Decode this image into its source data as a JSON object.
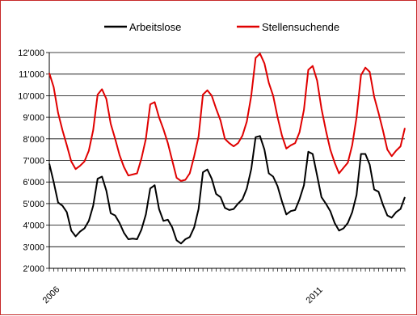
{
  "chart_data": {
    "type": "line",
    "title": "",
    "xlabel": "",
    "ylabel": "",
    "ylim": [
      2000,
      12000
    ],
    "yticks": [
      2000,
      3000,
      4000,
      5000,
      6000,
      7000,
      8000,
      9000,
      10000,
      11000,
      12000
    ],
    "ytick_labels": [
      "2'000",
      "3'000",
      "4'000",
      "5'000",
      "6'000",
      "7'000",
      "8'000",
      "9'000",
      "10'000",
      "11'000",
      "12'000"
    ],
    "x_tick_labels": [
      "2006",
      "2011"
    ],
    "grid": "horizontal",
    "legend_position": "top",
    "series": [
      {
        "name": "Arbeitslose",
        "color": "#000000",
        "values": [
          6850,
          6000,
          5050,
          4900,
          4600,
          3750,
          3480,
          3700,
          3850,
          4200,
          4900,
          6150,
          6250,
          5600,
          4550,
          4450,
          4100,
          3650,
          3350,
          3380,
          3350,
          3800,
          4500,
          5700,
          5850,
          4750,
          4200,
          4250,
          3900,
          3300,
          3150,
          3350,
          3450,
          3900,
          4750,
          6450,
          6580,
          6150,
          5450,
          5300,
          4800,
          4700,
          4750,
          5000,
          5200,
          5700,
          6600,
          8080,
          8130,
          7500,
          6400,
          6250,
          5800,
          5100,
          4500,
          4650,
          4700,
          5200,
          5850,
          7400,
          7300,
          6300,
          5300,
          5000,
          4650,
          4100,
          3750,
          3850,
          4100,
          4600,
          5400,
          7300,
          7300,
          6800,
          5650,
          5550,
          4950,
          4450,
          4350,
          4600,
          4750,
          5300
        ]
      },
      {
        "name": "Stellensuchende",
        "color": "#e00000",
        "values": [
          11050,
          10400,
          9200,
          8400,
          7700,
          6950,
          6600,
          6750,
          6950,
          7450,
          8400,
          10050,
          10300,
          9850,
          8700,
          8000,
          7250,
          6700,
          6300,
          6350,
          6400,
          7100,
          8000,
          9600,
          9700,
          9000,
          8450,
          7800,
          7000,
          6200,
          6050,
          6100,
          6400,
          7200,
          8100,
          10050,
          10250,
          10000,
          9400,
          8850,
          8000,
          7800,
          7650,
          7800,
          8150,
          8800,
          10000,
          11750,
          11950,
          11500,
          10600,
          10000,
          9000,
          8150,
          7550,
          7700,
          7800,
          8300,
          9350,
          11200,
          11380,
          10700,
          9400,
          8400,
          7500,
          6900,
          6400,
          6650,
          6900,
          7700,
          9000,
          10950,
          11300,
          11100,
          9950,
          9200,
          8400,
          7500,
          7200,
          7450,
          7650,
          8500
        ]
      }
    ]
  }
}
